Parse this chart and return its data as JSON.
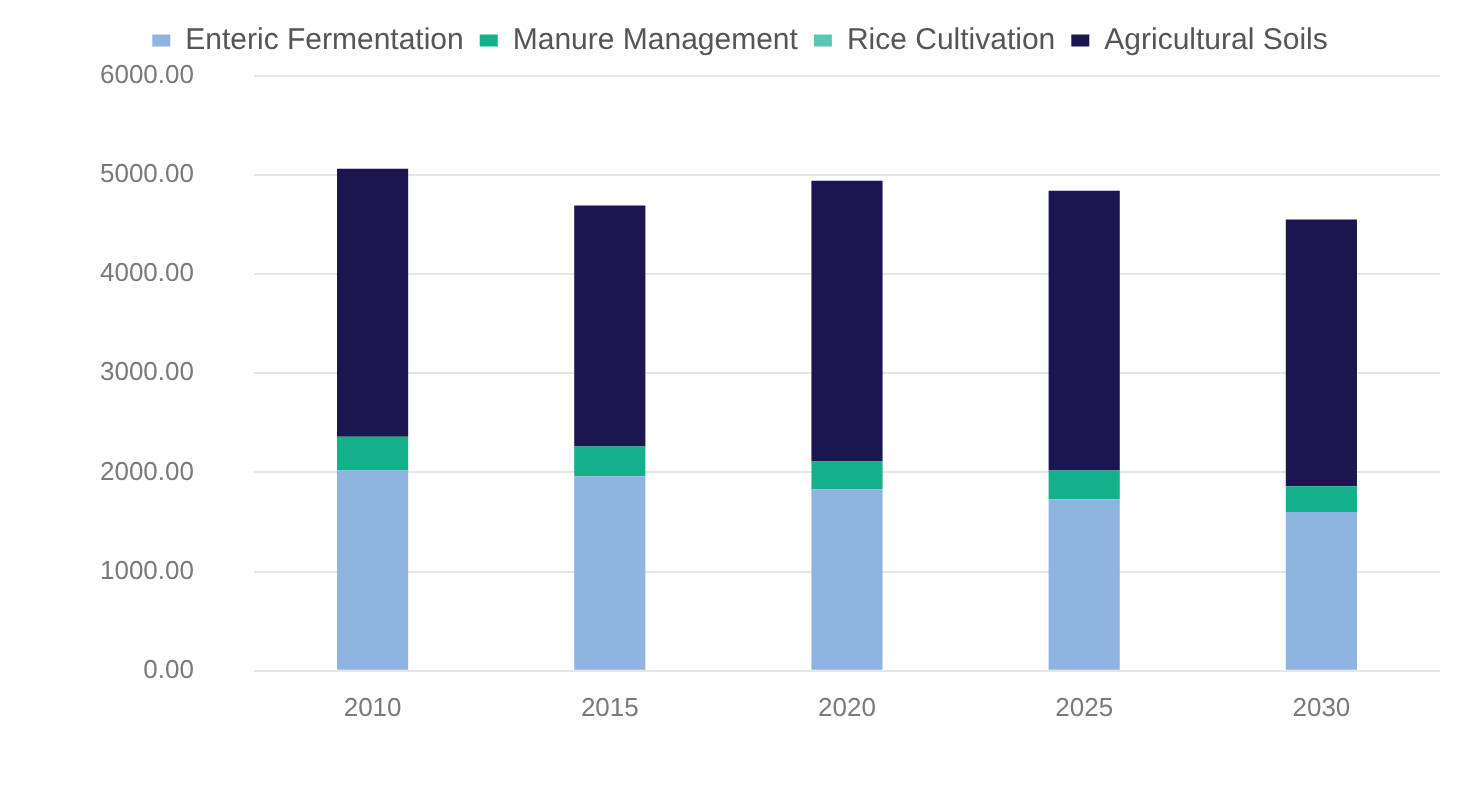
{
  "chart_data": {
    "type": "bar",
    "stacked": true,
    "categories": [
      "2010",
      "2015",
      "2020",
      "2025",
      "2030"
    ],
    "series": [
      {
        "name": "Enteric Fermentation",
        "color": "#8fb4e0",
        "values": [
          2020,
          1960,
          1830,
          1730,
          1600
        ]
      },
      {
        "name": "Manure Management",
        "color": "#14b08a",
        "values": [
          340,
          300,
          280,
          290,
          260
        ]
      },
      {
        "name": "Rice Cultivation",
        "color": "#5cc6b4",
        "values": [
          0,
          0,
          0,
          0,
          0
        ]
      },
      {
        "name": "Agricultural Soils",
        "color": "#1c1650",
        "values": [
          2700,
          2430,
          2830,
          2820,
          2690
        ]
      }
    ],
    "ylim": [
      0,
      6000
    ],
    "yticks": [
      {
        "value": 0,
        "label": "0.00"
      },
      {
        "value": 1000,
        "label": "1000.00"
      },
      {
        "value": 2000,
        "label": "2000.00"
      },
      {
        "value": 3000,
        "label": "3000.00"
      },
      {
        "value": 4000,
        "label": "4000.00"
      },
      {
        "value": 5000,
        "label": "5000.00"
      },
      {
        "value": 6000,
        "label": "6000.00"
      }
    ],
    "grid": "y",
    "legend": "top"
  }
}
